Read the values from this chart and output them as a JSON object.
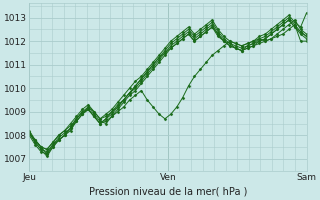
{
  "xlabel": "Pression niveau de la mer( hPa )",
  "bg_color": "#cce8e8",
  "grid_color": "#aacccc",
  "line_color": "#1a6b1a",
  "ylim": [
    1006.8,
    1013.6
  ],
  "xlim": [
    0,
    48
  ],
  "yticks": [
    1007,
    1008,
    1009,
    1010,
    1011,
    1012,
    1013
  ],
  "xtick_positions": [
    0,
    24,
    48
  ],
  "xtick_labels": [
    "Jeu",
    "Ven",
    "Sam"
  ],
  "series": [
    [
      1008.1,
      1007.8,
      1007.5,
      1007.4,
      1007.7,
      1008.0,
      1008.2,
      1008.4,
      1008.7,
      1009.0,
      1009.2,
      1009.0,
      1008.7,
      1008.8,
      1009.0,
      1009.3,
      1009.5,
      1009.8,
      1010.0,
      1010.3,
      1010.6,
      1010.9,
      1011.2,
      1011.5,
      1011.7,
      1011.9,
      1012.1,
      1012.3,
      1012.0,
      1012.2,
      1012.4,
      1012.6,
      1012.2,
      1012.0,
      1011.8,
      1011.7,
      1011.6,
      1011.7,
      1011.8,
      1011.9,
      1012.0,
      1012.1,
      1012.3,
      1012.5,
      1012.7,
      1012.9,
      1012.5,
      1012.3
    ],
    [
      1008.0,
      1007.6,
      1007.3,
      1007.2,
      1007.5,
      1007.8,
      1008.0,
      1008.2,
      1008.6,
      1008.9,
      1009.1,
      1008.8,
      1008.5,
      1008.7,
      1008.9,
      1009.2,
      1009.5,
      1009.8,
      1010.1,
      1010.4,
      1010.7,
      1011.0,
      1011.3,
      1011.6,
      1011.9,
      1012.1,
      1012.3,
      1012.5,
      1012.2,
      1012.4,
      1012.6,
      1012.8,
      1012.4,
      1012.1,
      1011.9,
      1011.8,
      1011.7,
      1011.8,
      1011.9,
      1012.1,
      1012.2,
      1012.4,
      1012.6,
      1012.8,
      1013.0,
      1012.7,
      1012.4,
      1012.2
    ],
    [
      1008.1,
      1007.7,
      1007.4,
      1007.3,
      1007.6,
      1007.9,
      1008.1,
      1008.3,
      1008.7,
      1009.0,
      1009.1,
      1008.8,
      1008.5,
      1008.7,
      1009.0,
      1009.2,
      1009.5,
      1009.8,
      1010.1,
      1010.4,
      1010.7,
      1011.0,
      1011.3,
      1011.5,
      1011.8,
      1012.0,
      1012.2,
      1012.4,
      1012.1,
      1012.3,
      1012.5,
      1012.7,
      1012.3,
      1012.0,
      1011.9,
      1011.7,
      1011.6,
      1011.8,
      1011.9,
      1012.0,
      1012.1,
      1012.3,
      1012.5,
      1012.7,
      1012.9,
      1012.6,
      1012.3,
      1012.1
    ],
    [
      1008.2,
      1007.8,
      1007.5,
      1007.4,
      1007.7,
      1008.0,
      1008.2,
      1008.5,
      1008.8,
      1009.1,
      1009.3,
      1009.0,
      1008.7,
      1008.9,
      1009.1,
      1009.4,
      1009.7,
      1010.0,
      1010.3,
      1010.5,
      1010.8,
      1011.1,
      1011.4,
      1011.7,
      1012.0,
      1012.2,
      1012.4,
      1012.6,
      1012.3,
      1012.5,
      1012.7,
      1012.9,
      1012.5,
      1012.2,
      1012.0,
      1011.9,
      1011.8,
      1011.9,
      1012.0,
      1012.2,
      1012.3,
      1012.5,
      1012.7,
      1012.9,
      1013.1,
      1012.8,
      1012.6,
      1013.2
    ],
    [
      1008.1,
      1007.8,
      1007.5,
      1007.2,
      1007.6,
      1007.8,
      1008.0,
      1008.3,
      1008.6,
      1008.9,
      1009.1,
      1008.8,
      1008.5,
      1008.6,
      1008.8,
      1009.1,
      1009.4,
      1009.7,
      1009.9,
      1010.2,
      1010.5,
      1010.8,
      1011.1,
      1011.4,
      1011.7,
      1011.9,
      1012.1,
      1012.3,
      1012.0,
      1012.2,
      1012.4,
      1012.6,
      1012.3,
      1012.0,
      1011.8,
      1011.7,
      1011.6,
      1011.7,
      1011.8,
      1012.0,
      1012.1,
      1012.3,
      1012.5,
      1012.7,
      1012.9,
      1012.6,
      1012.4,
      1012.2
    ],
    [
      1008.1,
      1007.7,
      1007.4,
      1007.1,
      1007.5,
      1007.8,
      1008.0,
      1008.3,
      1008.6,
      1008.9,
      1009.2,
      1008.9,
      1008.6,
      1008.5,
      1008.8,
      1009.0,
      1009.2,
      1009.5,
      1009.7,
      1009.9,
      1009.5,
      1009.2,
      1008.9,
      1008.7,
      1008.9,
      1009.2,
      1009.6,
      1010.1,
      1010.5,
      1010.8,
      1011.1,
      1011.4,
      1011.6,
      1011.8,
      1012.0,
      1011.9,
      1011.8,
      1011.9,
      1012.0,
      1012.1,
      1012.0,
      1012.1,
      1012.2,
      1012.3,
      1012.5,
      1012.7,
      1012.0,
      1012.0
    ]
  ]
}
